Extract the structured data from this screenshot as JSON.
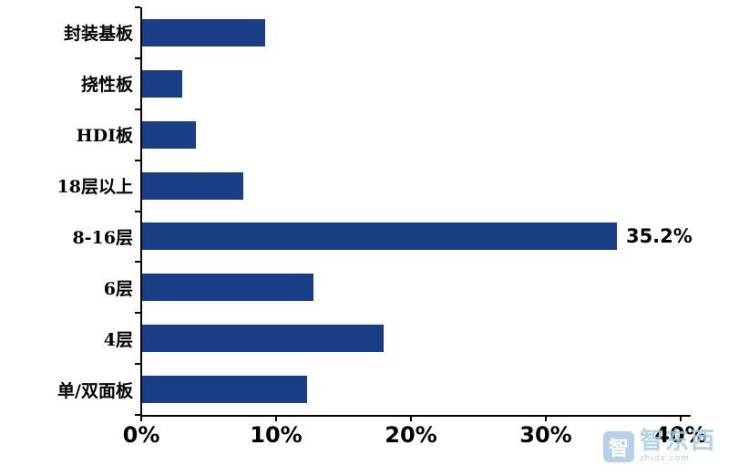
{
  "chart_data": {
    "type": "bar",
    "orientation": "horizontal",
    "title": "",
    "xlabel": "",
    "ylabel": "",
    "categories": [
      "封装基板",
      "挠性板",
      "HDI板",
      "18层以上",
      "8-16层",
      "6层",
      "4层",
      "单/双面板"
    ],
    "values": [
      9.1,
      3.0,
      4.0,
      7.5,
      35.2,
      12.7,
      17.9,
      12.2
    ],
    "data_labels": [
      "",
      "",
      "",
      "",
      "35.2%",
      "",
      "",
      ""
    ],
    "x_ticks": [
      "0%",
      "10%",
      "20%",
      "30%",
      "40%"
    ],
    "xlim": [
      0,
      40
    ],
    "bar_color": "#1A3E85",
    "axis_color": "#000000",
    "grid": false,
    "legend": false
  },
  "watermark": {
    "logo_char": "智",
    "text": "智东西",
    "subtext": "zhidx.com",
    "color": "#A9C9E4"
  }
}
